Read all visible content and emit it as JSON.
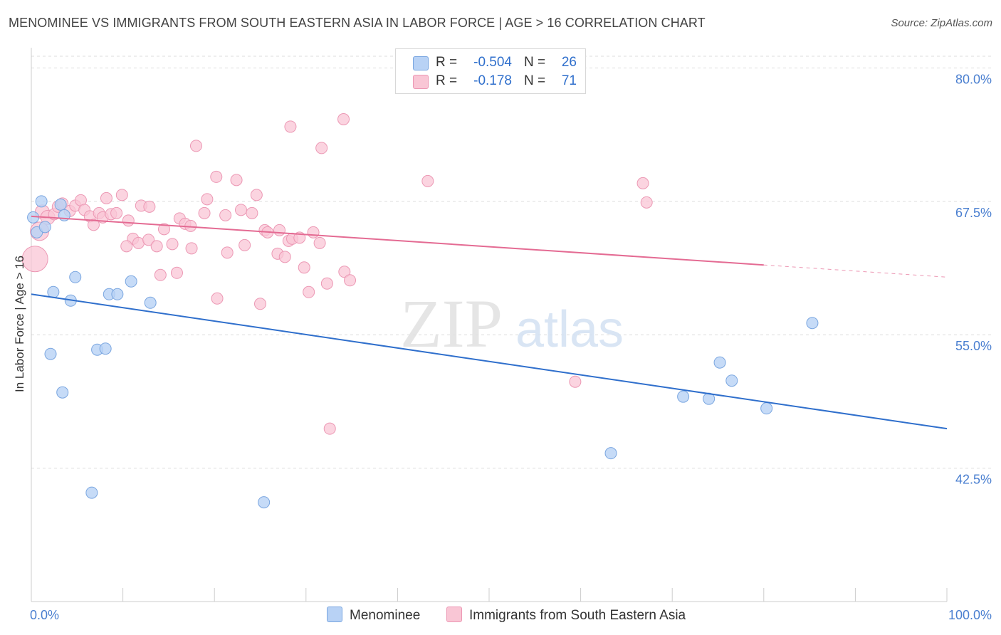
{
  "title": "MENOMINEE VS IMMIGRANTS FROM SOUTH EASTERN ASIA IN LABOR FORCE | AGE > 16 CORRELATION CHART",
  "source": "Source: ZipAtlas.com",
  "watermark": {
    "zip": "ZIP",
    "atlas": "atlas"
  },
  "legend": {
    "rows": [
      {
        "r_label": "R =",
        "r_value": "-0.504",
        "n_label": "N =",
        "n_value": "26"
      },
      {
        "r_label": "R =",
        "r_value": "-0.178",
        "n_label": "N =",
        "n_value": "71"
      }
    ]
  },
  "bottom_legend": {
    "series1": "Menominee",
    "series2": "Immigrants from South Eastern Asia"
  },
  "colors": {
    "blue_fill": "#b8d2f5",
    "blue_stroke": "#7aa6e0",
    "blue_line": "#2f6fcc",
    "pink_fill": "#f9c6d5",
    "pink_stroke": "#ec98b4",
    "pink_line": "#e46b93",
    "tick_label": "#4a7fd0",
    "grid": "#dcdcdc"
  },
  "chart_data": {
    "type": "scatter",
    "title": "MENOMINEE VS IMMIGRANTS FROM SOUTH EASTERN ASIA IN LABOR FORCE | AGE > 16 CORRELATION CHART",
    "xlabel": "",
    "ylabel": "In Labor Force | Age > 16",
    "xlim": [
      0,
      100
    ],
    "ylim": [
      30,
      81.5
    ],
    "x_tick_labels": [
      {
        "value": 0,
        "label": "0.0%"
      },
      {
        "value": 100,
        "label": "100.0%"
      }
    ],
    "x_minor_ticks": [
      0,
      10,
      20,
      30,
      40,
      50,
      60,
      70,
      80,
      90,
      100
    ],
    "y_ticks": [
      {
        "value": 80,
        "label": "80.0%"
      },
      {
        "value": 67.5,
        "label": "67.5%"
      },
      {
        "value": 55,
        "label": "55.0%"
      },
      {
        "value": 42.5,
        "label": "42.5%"
      }
    ],
    "series": [
      {
        "name": "Menominee",
        "color": "blue",
        "r": -0.504,
        "n": 26,
        "trend": {
          "x0": 0,
          "y0": 58.8,
          "x1": 100,
          "y1": 46.2,
          "solid_until": 100
        },
        "points": [
          {
            "x": 0.2,
            "y": 66.0,
            "s": 8
          },
          {
            "x": 0.6,
            "y": 64.6,
            "s": 8
          },
          {
            "x": 1.1,
            "y": 67.5,
            "s": 8
          },
          {
            "x": 1.5,
            "y": 65.1,
            "s": 8
          },
          {
            "x": 3.2,
            "y": 67.2,
            "s": 8
          },
          {
            "x": 3.6,
            "y": 66.2,
            "s": 8
          },
          {
            "x": 2.4,
            "y": 59.0,
            "s": 8
          },
          {
            "x": 4.8,
            "y": 60.4,
            "s": 8
          },
          {
            "x": 4.3,
            "y": 58.2,
            "s": 8
          },
          {
            "x": 8.5,
            "y": 58.8,
            "s": 8
          },
          {
            "x": 9.4,
            "y": 58.8,
            "s": 8
          },
          {
            "x": 10.9,
            "y": 60.0,
            "s": 8
          },
          {
            "x": 13.0,
            "y": 58.0,
            "s": 8
          },
          {
            "x": 2.1,
            "y": 53.2,
            "s": 8
          },
          {
            "x": 7.2,
            "y": 53.6,
            "s": 8
          },
          {
            "x": 8.1,
            "y": 53.7,
            "s": 8
          },
          {
            "x": 3.4,
            "y": 49.6,
            "s": 8
          },
          {
            "x": 6.6,
            "y": 40.2,
            "s": 8
          },
          {
            "x": 25.4,
            "y": 39.3,
            "s": 8
          },
          {
            "x": 63.3,
            "y": 43.9,
            "s": 8
          },
          {
            "x": 71.2,
            "y": 49.2,
            "s": 8
          },
          {
            "x": 74.0,
            "y": 49.0,
            "s": 8
          },
          {
            "x": 75.2,
            "y": 52.4,
            "s": 8
          },
          {
            "x": 76.5,
            "y": 50.7,
            "s": 8
          },
          {
            "x": 80.3,
            "y": 48.1,
            "s": 8
          },
          {
            "x": 85.3,
            "y": 56.1,
            "s": 8
          }
        ]
      },
      {
        "name": "Immigrants from South Eastern Asia",
        "color": "pink",
        "r": -0.178,
        "n": 71,
        "trend": {
          "x0": 0,
          "y0": 66.1,
          "x1": 100,
          "y1": 60.4,
          "solid_until": 80
        },
        "points": [
          {
            "x": 0.4,
            "y": 62.1,
            "s": 18
          },
          {
            "x": 0.9,
            "y": 64.7,
            "s": 13
          },
          {
            "x": 1.2,
            "y": 66.5,
            "s": 10
          },
          {
            "x": 1.8,
            "y": 66.0,
            "s": 10
          },
          {
            "x": 2.5,
            "y": 66.3,
            "s": 8
          },
          {
            "x": 2.9,
            "y": 67.0,
            "s": 8
          },
          {
            "x": 3.4,
            "y": 67.3,
            "s": 8
          },
          {
            "x": 4.2,
            "y": 66.6,
            "s": 8
          },
          {
            "x": 4.8,
            "y": 67.1,
            "s": 8
          },
          {
            "x": 5.4,
            "y": 67.6,
            "s": 8
          },
          {
            "x": 5.8,
            "y": 66.7,
            "s": 8
          },
          {
            "x": 6.4,
            "y": 66.1,
            "s": 8
          },
          {
            "x": 6.8,
            "y": 65.3,
            "s": 8
          },
          {
            "x": 7.4,
            "y": 66.4,
            "s": 8
          },
          {
            "x": 7.8,
            "y": 66.0,
            "s": 8
          },
          {
            "x": 8.2,
            "y": 67.8,
            "s": 8
          },
          {
            "x": 8.7,
            "y": 66.3,
            "s": 8
          },
          {
            "x": 9.3,
            "y": 66.4,
            "s": 8
          },
          {
            "x": 9.9,
            "y": 68.1,
            "s": 8
          },
          {
            "x": 10.6,
            "y": 65.7,
            "s": 8
          },
          {
            "x": 11.1,
            "y": 64.0,
            "s": 8
          },
          {
            "x": 12.0,
            "y": 67.1,
            "s": 8
          },
          {
            "x": 12.9,
            "y": 67.0,
            "s": 8
          },
          {
            "x": 10.4,
            "y": 63.3,
            "s": 8
          },
          {
            "x": 11.7,
            "y": 63.6,
            "s": 8
          },
          {
            "x": 12.8,
            "y": 63.9,
            "s": 8
          },
          {
            "x": 13.7,
            "y": 63.3,
            "s": 8
          },
          {
            "x": 14.5,
            "y": 64.9,
            "s": 8
          },
          {
            "x": 15.4,
            "y": 63.5,
            "s": 8
          },
          {
            "x": 16.2,
            "y": 65.9,
            "s": 8
          },
          {
            "x": 16.8,
            "y": 65.4,
            "s": 8
          },
          {
            "x": 17.4,
            "y": 65.2,
            "s": 8
          },
          {
            "x": 14.1,
            "y": 60.6,
            "s": 8
          },
          {
            "x": 15.9,
            "y": 60.8,
            "s": 8
          },
          {
            "x": 17.5,
            "y": 63.1,
            "s": 8
          },
          {
            "x": 18.9,
            "y": 66.4,
            "s": 8
          },
          {
            "x": 19.2,
            "y": 67.7,
            "s": 8
          },
          {
            "x": 20.2,
            "y": 69.8,
            "s": 8
          },
          {
            "x": 21.2,
            "y": 66.2,
            "s": 8
          },
          {
            "x": 21.4,
            "y": 62.7,
            "s": 8
          },
          {
            "x": 22.4,
            "y": 69.5,
            "s": 8
          },
          {
            "x": 22.9,
            "y": 66.7,
            "s": 8
          },
          {
            "x": 23.3,
            "y": 63.4,
            "s": 8
          },
          {
            "x": 24.6,
            "y": 68.1,
            "s": 8
          },
          {
            "x": 24.1,
            "y": 66.4,
            "s": 8
          },
          {
            "x": 25.5,
            "y": 64.8,
            "s": 8
          },
          {
            "x": 25.8,
            "y": 64.6,
            "s": 8
          },
          {
            "x": 26.9,
            "y": 62.6,
            "s": 8
          },
          {
            "x": 27.1,
            "y": 64.8,
            "s": 8
          },
          {
            "x": 27.7,
            "y": 62.3,
            "s": 8
          },
          {
            "x": 28.1,
            "y": 63.8,
            "s": 8
          },
          {
            "x": 28.5,
            "y": 64.0,
            "s": 8
          },
          {
            "x": 29.3,
            "y": 64.1,
            "s": 8
          },
          {
            "x": 29.8,
            "y": 61.3,
            "s": 8
          },
          {
            "x": 30.3,
            "y": 59.0,
            "s": 8
          },
          {
            "x": 30.8,
            "y": 64.6,
            "s": 8
          },
          {
            "x": 31.5,
            "y": 63.6,
            "s": 8
          },
          {
            "x": 32.3,
            "y": 59.8,
            "s": 8
          },
          {
            "x": 34.2,
            "y": 60.9,
            "s": 8
          },
          {
            "x": 34.8,
            "y": 60.1,
            "s": 8
          },
          {
            "x": 25.0,
            "y": 57.9,
            "s": 8
          },
          {
            "x": 20.3,
            "y": 58.4,
            "s": 8
          },
          {
            "x": 18.0,
            "y": 72.7,
            "s": 8
          },
          {
            "x": 28.3,
            "y": 74.5,
            "s": 8
          },
          {
            "x": 31.7,
            "y": 72.5,
            "s": 8
          },
          {
            "x": 34.1,
            "y": 75.2,
            "s": 8
          },
          {
            "x": 43.3,
            "y": 69.4,
            "s": 8
          },
          {
            "x": 66.8,
            "y": 69.2,
            "s": 8
          },
          {
            "x": 67.2,
            "y": 67.4,
            "s": 8
          },
          {
            "x": 59.4,
            "y": 50.6,
            "s": 8
          },
          {
            "x": 32.6,
            "y": 46.2,
            "s": 8
          }
        ]
      }
    ]
  }
}
